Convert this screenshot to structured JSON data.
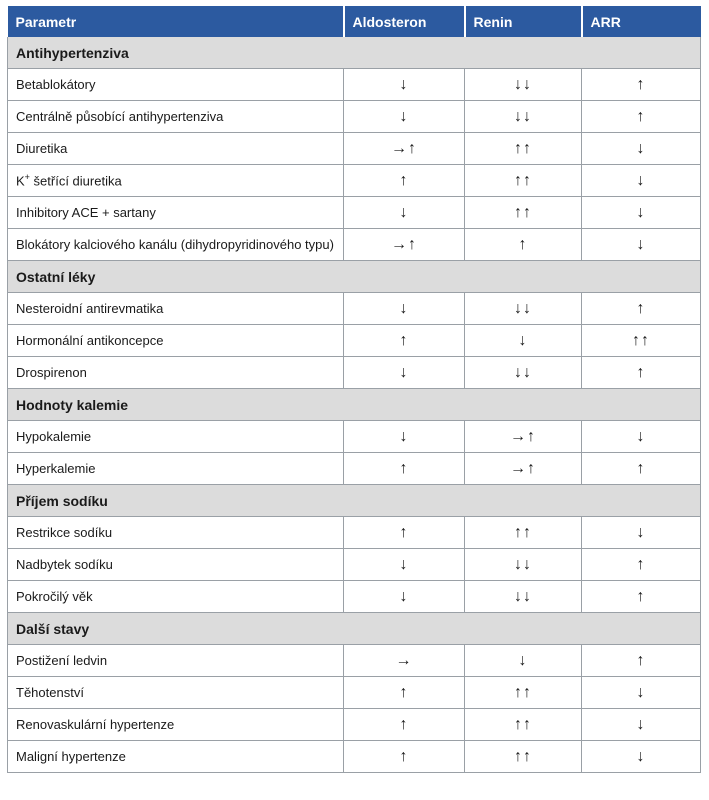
{
  "header": {
    "parametr": "Parametr",
    "aldosteron": "Aldosteron",
    "renin": "Renin",
    "arr": "ARR"
  },
  "sections": [
    {
      "title": "Antihypertenziva",
      "rows": [
        {
          "label": "Betablokátory",
          "aldosteron": "↓",
          "renin": "↓↓",
          "arr": "↑"
        },
        {
          "label": "Centrálně působící antihypertenziva",
          "aldosteron": "↓",
          "renin": "↓↓",
          "arr": "↑"
        },
        {
          "label": "Diuretika",
          "aldosteron": "→↑",
          "renin": "↑↑",
          "arr": "↓"
        },
        {
          "label_prefix": "K",
          "label_sup": "+",
          "label": " šetřící diuretika",
          "aldosteron": "↑",
          "renin": "↑↑",
          "arr": "↓"
        },
        {
          "label": "Inhibitory ACE + sartany",
          "aldosteron": "↓",
          "renin": "↑↑",
          "arr": "↓"
        },
        {
          "label": "Blokátory kalciového kanálu (dihydropyridinového typu)",
          "aldosteron": "→↑",
          "renin": "↑",
          "arr": "↓"
        }
      ]
    },
    {
      "title": "Ostatní léky",
      "rows": [
        {
          "label": "Nesteroidní antirevmatika",
          "aldosteron": "↓",
          "renin": "↓↓",
          "arr": "↑"
        },
        {
          "label": "Hormonální antikoncepce",
          "aldosteron": "↑",
          "renin": "↓",
          "arr": "↑↑"
        },
        {
          "label": "Drospirenon",
          "aldosteron": "↓",
          "renin": "↓↓",
          "arr": "↑"
        }
      ]
    },
    {
      "title": "Hodnoty kalemie",
      "rows": [
        {
          "label": "Hypokalemie",
          "aldosteron": "↓",
          "renin": "→↑",
          "arr": "↓"
        },
        {
          "label": "Hyperkalemie",
          "aldosteron": "↑",
          "renin": "→↑",
          "arr": "↑"
        }
      ]
    },
    {
      "title": "Příjem sodíku",
      "rows": [
        {
          "label": "Restrikce sodíku",
          "aldosteron": "↑",
          "renin": "↑↑",
          "arr": "↓"
        },
        {
          "label": "Nadbytek sodíku",
          "aldosteron": "↓",
          "renin": "↓↓",
          "arr": "↑"
        },
        {
          "label": "Pokročilý věk",
          "aldosteron": "↓",
          "renin": "↓↓",
          "arr": "↑"
        }
      ]
    },
    {
      "title": "Další stavy",
      "rows": [
        {
          "label": "Postižení ledvin",
          "aldosteron": "→",
          "renin": "↓",
          "arr": "↑"
        },
        {
          "label": "Těhotenství",
          "aldosteron": "↑",
          "renin": "↑↑",
          "arr": "↓"
        },
        {
          "label": "Renovaskulární hypertenze",
          "aldosteron": "↑",
          "renin": "↑↑",
          "arr": "↓"
        },
        {
          "label": "Maligní hypertenze",
          "aldosteron": "↑",
          "renin": "↑↑",
          "arr": "↓"
        }
      ]
    }
  ]
}
